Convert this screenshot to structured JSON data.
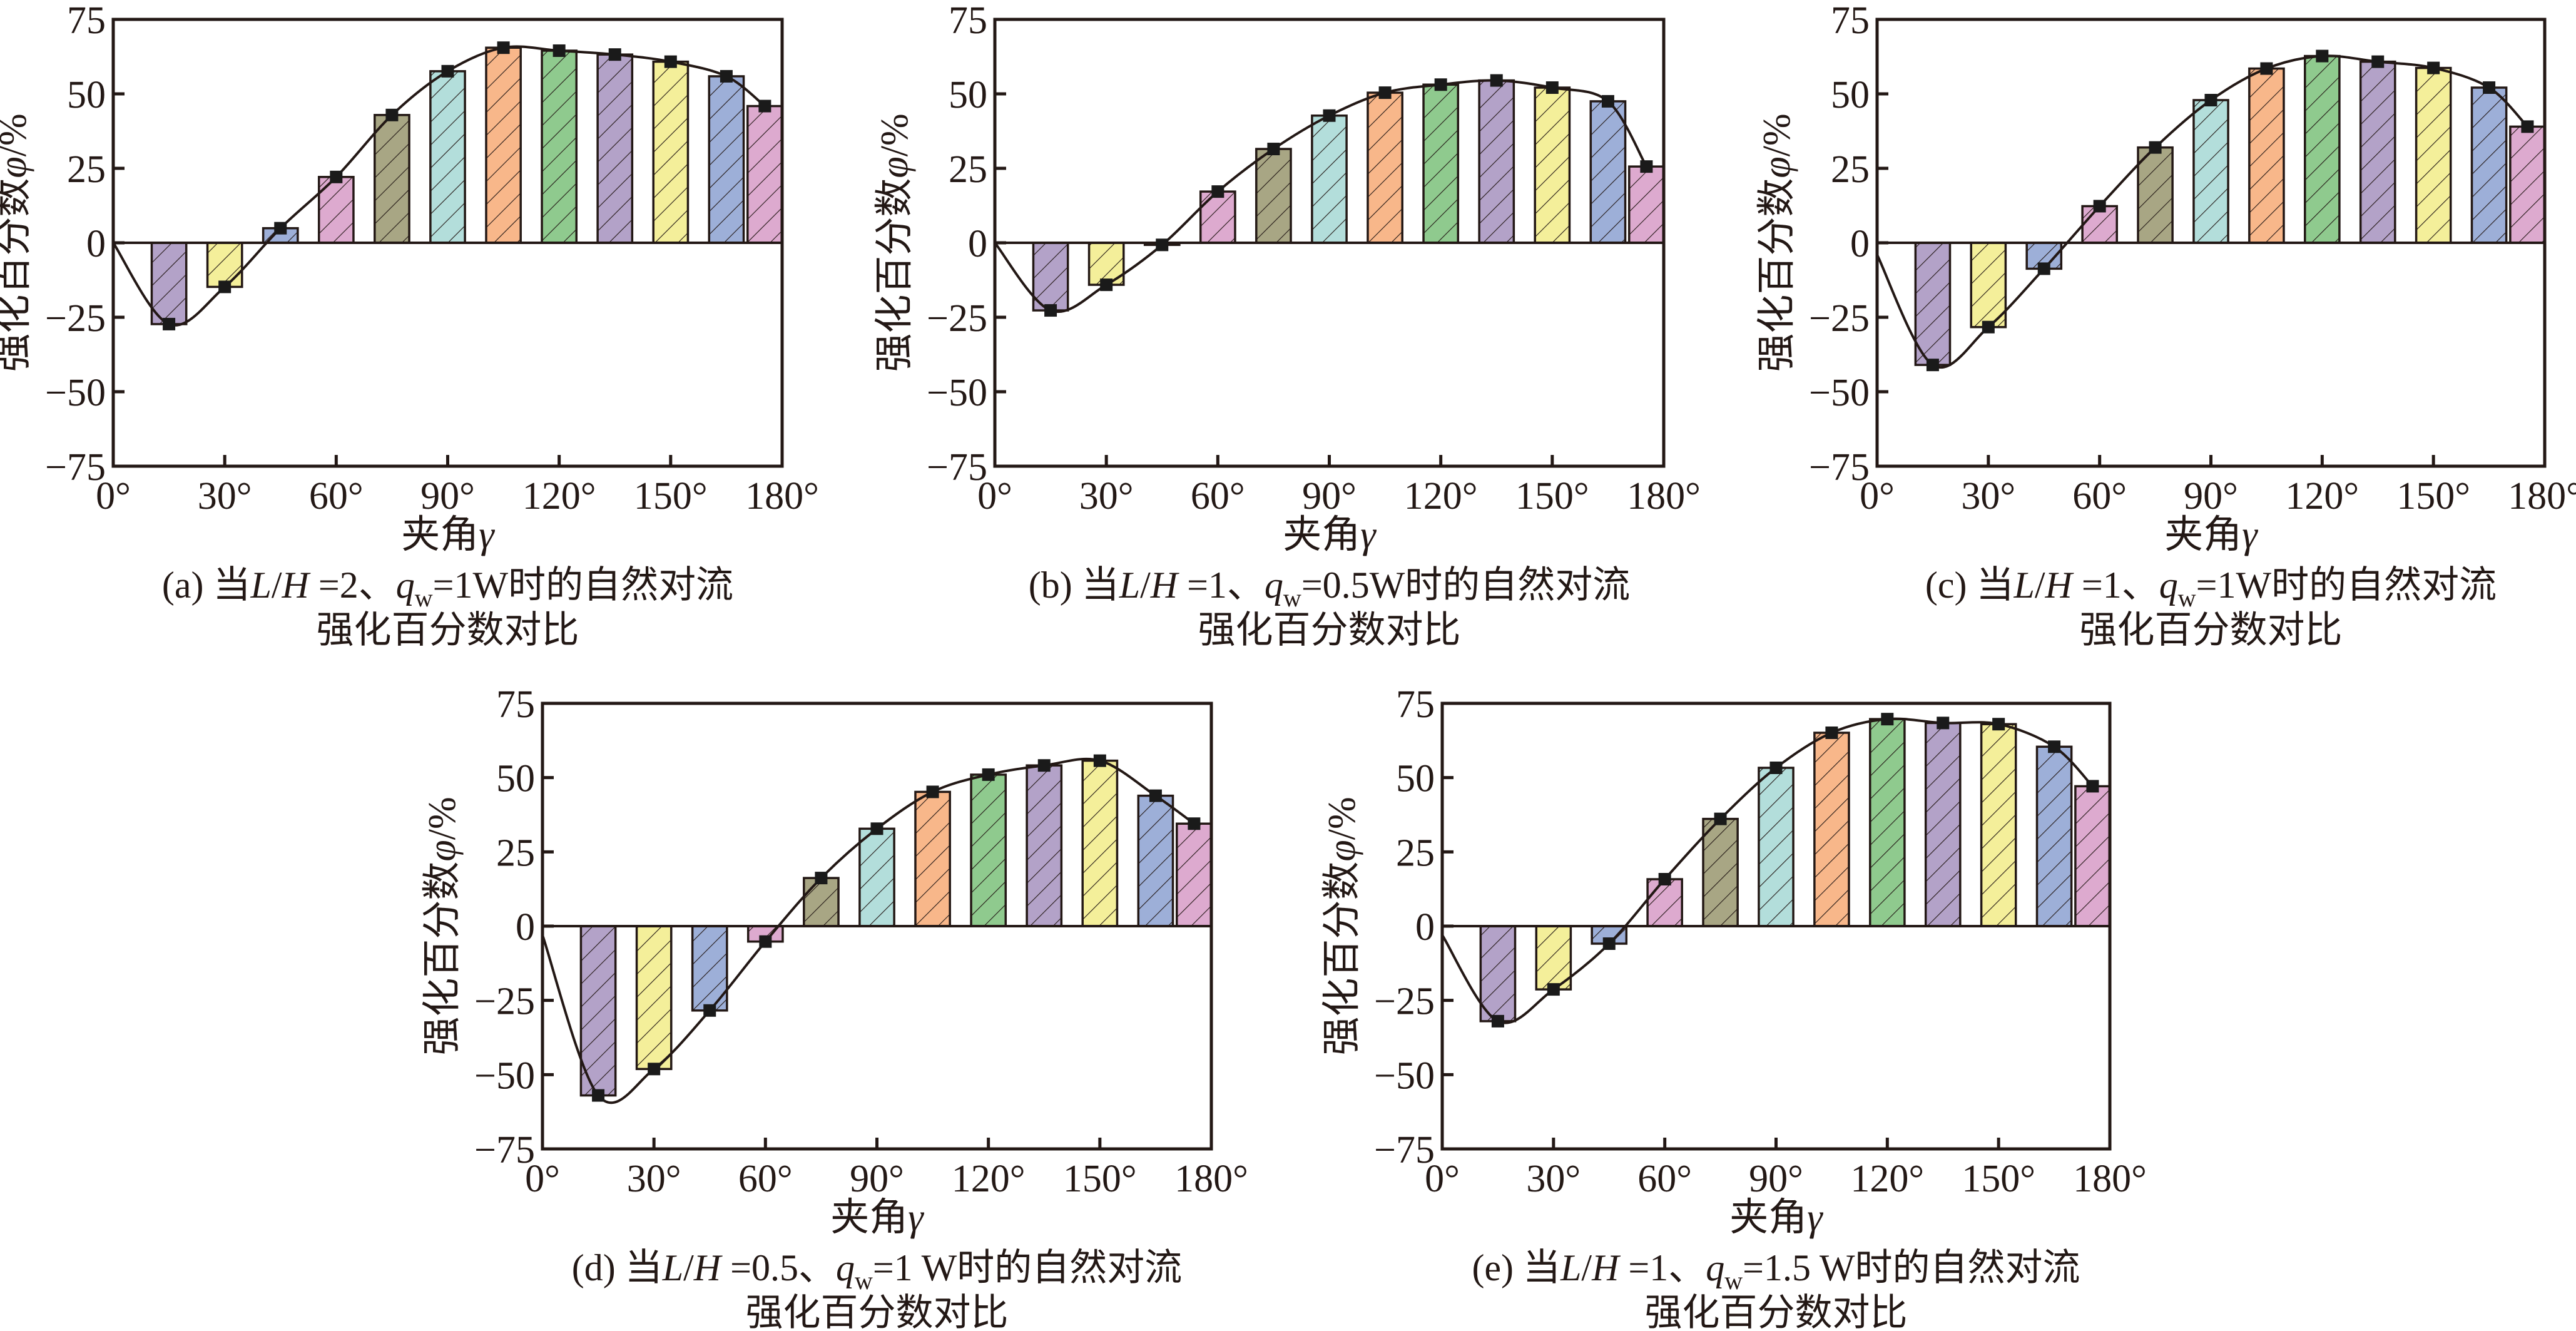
{
  "figure": {
    "x_axis_title": "夹角",
    "x_axis_symbol": "γ",
    "y_axis_title": "强化百分数",
    "y_axis_symbol": "φ",
    "y_axis_unit": "/%",
    "caption_line2": "强化百分数对比",
    "bar_colors": [
      "#B3A2C8",
      "#F4EF9A",
      "#9DAFD8",
      "#DDAACF",
      "#A8A684",
      "#B3DEDB",
      "#F8B78A",
      "#8FCA8E",
      "#B3A2C8",
      "#F4EF9A",
      "#9DAFD8",
      "#DDAACF"
    ],
    "hatch_color": "#231815",
    "line_color": "#231815",
    "marker_color": "#1a1a1a"
  },
  "chart_data": [
    {
      "id": "a",
      "type": "bar",
      "title": "(a) 当L/H =2、qw=1W时的自然对流强化百分数对比",
      "caption_prefix": "(a) 当",
      "caption_params": {
        "LH": "2",
        "qw": "1W"
      },
      "xlabel": "夹角γ",
      "ylabel": "强化百分数φ/%",
      "xlim": [
        0,
        180
      ],
      "ylim": [
        -75,
        75
      ],
      "x_ticks": [
        0,
        30,
        60,
        90,
        120,
        150,
        180
      ],
      "x_tick_labels": [
        "0°",
        "30°",
        "60°",
        "90°",
        "120°",
        "150°",
        "180°"
      ],
      "y_ticks": [
        -75,
        -50,
        -25,
        0,
        25,
        50,
        75
      ],
      "y_tick_labels": [
        "−75",
        "−50",
        "−25",
        "0",
        "25",
        "50",
        "75"
      ],
      "x": [
        15,
        30,
        45,
        60,
        75,
        90,
        105,
        120,
        135,
        150,
        165,
        180
      ],
      "values": [
        -27.3,
        -14.8,
        4.9,
        22.1,
        42.9,
        57.6,
        65.5,
        64.5,
        63.2,
        60.8,
        55.9,
        45.9
      ],
      "curve_start": [
        0,
        0
      ],
      "grid": false
    },
    {
      "id": "b",
      "type": "bar",
      "title": "(b) 当L/H =1、qw=0.5W时的自然对流强化百分数对比",
      "caption_prefix": "(b) 当",
      "caption_params": {
        "LH": "1",
        "qw": "0.5W"
      },
      "xlabel": "夹角γ",
      "ylabel": "强化百分数φ/%",
      "xlim": [
        0,
        180
      ],
      "ylim": [
        -75,
        75
      ],
      "x_ticks": [
        0,
        30,
        60,
        90,
        120,
        150,
        180
      ],
      "x_tick_labels": [
        "0°",
        "30°",
        "60°",
        "90°",
        "120°",
        "150°",
        "180°"
      ],
      "y_ticks": [
        -75,
        -50,
        -25,
        0,
        25,
        50,
        75
      ],
      "y_tick_labels": [
        "−75",
        "−50",
        "−25",
        "0",
        "25",
        "50",
        "75"
      ],
      "x": [
        15,
        30,
        45,
        60,
        75,
        90,
        105,
        120,
        135,
        150,
        165,
        180
      ],
      "values": [
        -22.7,
        -14.1,
        -0.7,
        17.2,
        31.5,
        42.7,
        50.4,
        53.1,
        54.5,
        52.1,
        47.5,
        25.6
      ],
      "curve_start": [
        0,
        0
      ],
      "grid": false
    },
    {
      "id": "c",
      "type": "bar",
      "title": "(c) 当L/H =1、qw=1W时的自然对流强化百分数对比",
      "caption_prefix": "(c) 当",
      "caption_params": {
        "LH": "1",
        "qw": "1W"
      },
      "xlabel": "夹角γ",
      "ylabel": "强化百分数φ/%",
      "xlim": [
        0,
        180
      ],
      "ylim": [
        -75,
        75
      ],
      "x_ticks": [
        0,
        30,
        60,
        90,
        120,
        150,
        180
      ],
      "x_tick_labels": [
        "0°",
        "30°",
        "60°",
        "90°",
        "120°",
        "150°",
        "180°"
      ],
      "y_ticks": [
        -75,
        -50,
        -25,
        0,
        25,
        50,
        75
      ],
      "y_tick_labels": [
        "−75",
        "−50",
        "−25",
        "0",
        "25",
        "50",
        "75"
      ],
      "x": [
        15,
        30,
        45,
        60,
        75,
        90,
        105,
        120,
        135,
        150,
        165,
        180
      ],
      "values": [
        -41.0,
        -28.3,
        -8.7,
        12.3,
        32.0,
        47.9,
        58.5,
        62.7,
        60.8,
        58.7,
        52.1,
        39.0
      ],
      "curve_start": [
        0,
        -4
      ],
      "grid": false
    },
    {
      "id": "d",
      "type": "bar",
      "title": "(d) 当L/H =0.5、qw=1 W时的自然对流强化百分数对比",
      "caption_prefix": "(d) 当",
      "caption_params": {
        "LH": "0.5",
        "qw": "1 W"
      },
      "xlabel": "夹角γ",
      "ylabel": "强化百分数φ/%",
      "xlim": [
        0,
        180
      ],
      "ylim": [
        -75,
        75
      ],
      "x_ticks": [
        0,
        30,
        60,
        90,
        120,
        150,
        180
      ],
      "x_tick_labels": [
        "0°",
        "30°",
        "60°",
        "90°",
        "120°",
        "150°",
        "180°"
      ],
      "y_ticks": [
        -75,
        -50,
        -25,
        0,
        25,
        50,
        75
      ],
      "y_tick_labels": [
        "−75",
        "−50",
        "−25",
        "0",
        "25",
        "50",
        "75"
      ],
      "x": [
        15,
        30,
        45,
        60,
        75,
        90,
        105,
        120,
        135,
        150,
        165,
        180
      ],
      "values": [
        -57.0,
        -48.1,
        -28.4,
        -5.2,
        16.2,
        32.8,
        45.2,
        51.0,
        54.1,
        55.7,
        43.9,
        34.5
      ],
      "curve_start": [
        0,
        -3
      ],
      "grid": false
    },
    {
      "id": "e",
      "type": "bar",
      "title": "(e) 当L/H =1、qw=1.5 W时的自然对流强化百分数对比",
      "caption_prefix": "(e) 当",
      "caption_params": {
        "LH": "1",
        "qw": "1.5 W"
      },
      "xlabel": "夹角γ",
      "ylabel": "强化百分数φ/%",
      "xlim": [
        0,
        180
      ],
      "ylim": [
        -75,
        75
      ],
      "x_ticks": [
        0,
        30,
        60,
        90,
        120,
        150,
        180
      ],
      "x_tick_labels": [
        "0°",
        "30°",
        "60°",
        "90°",
        "120°",
        "150°",
        "180°"
      ],
      "y_ticks": [
        -75,
        -50,
        -25,
        0,
        25,
        50,
        75
      ],
      "y_tick_labels": [
        "−75",
        "−50",
        "−25",
        "0",
        "25",
        "50",
        "75"
      ],
      "x": [
        15,
        30,
        45,
        60,
        75,
        90,
        105,
        120,
        135,
        150,
        165,
        180
      ],
      "values": [
        -32.0,
        -21.3,
        -5.9,
        15.8,
        36.1,
        53.3,
        65.1,
        69.7,
        68.4,
        68.0,
        60.4,
        47.1
      ],
      "curve_start": [
        0,
        -3
      ],
      "grid": false
    }
  ]
}
